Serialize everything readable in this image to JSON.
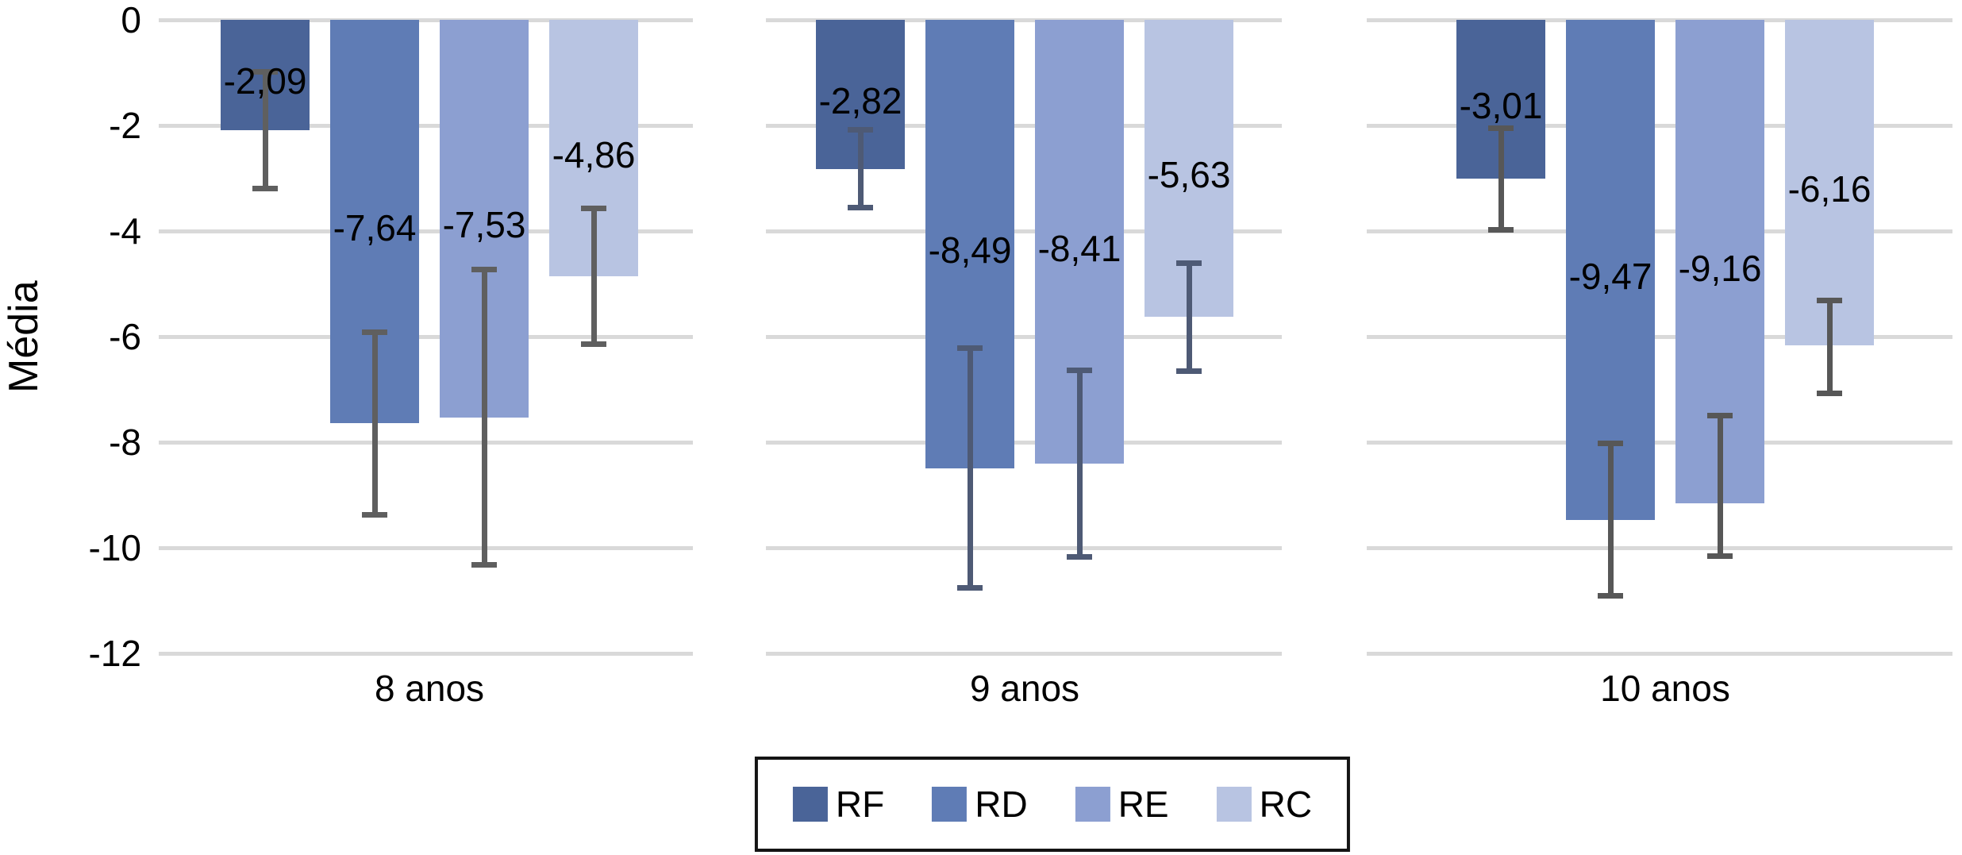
{
  "page": {
    "background": "#ffffff",
    "text_color": "#000000"
  },
  "chart_data": {
    "type": "bar",
    "orientation": "vertical",
    "direction": "negative-down",
    "title": "",
    "xlabel": "",
    "ylabel": "Média",
    "categories": [
      "8 anos",
      "9 anos",
      "10 anos"
    ],
    "y_ticks": [
      "0",
      "-2",
      "-4",
      "-6",
      "-8",
      "-10",
      "-12"
    ],
    "y_tick_values": [
      0,
      -2,
      -4,
      -6,
      -8,
      -10,
      -12
    ],
    "ylim": [
      0,
      -12
    ],
    "grid": true,
    "gridline_color": "#d9d9d9",
    "legend_position": "bottom",
    "decimal_separator": ",",
    "error_bar_colors_per_category": [
      "#5f5f5f",
      "#4e5a75",
      "#575757"
    ],
    "series": [
      {
        "name": "RF",
        "color": "#4a6498",
        "values": [
          -2.09,
          -2.82,
          -3.01
        ],
        "labels": [
          "-2,09",
          "-2,82",
          "-3,01"
        ],
        "error_ranges": [
          [
            -0.99,
            -3.19
          ],
          [
            -2.09,
            -3.55
          ],
          [
            -2.05,
            -3.97
          ]
        ]
      },
      {
        "name": "RD",
        "color": "#5f7cb5",
        "values": [
          -7.64,
          -8.49,
          -9.47
        ],
        "labels": [
          "-7,64",
          "-8,49",
          "-9,47"
        ],
        "error_ranges": [
          [
            -5.91,
            -9.37
          ],
          [
            -6.22,
            -10.76
          ],
          [
            -8.03,
            -10.91
          ]
        ]
      },
      {
        "name": "RE",
        "color": "#8c9fd1",
        "values": [
          -7.53,
          -8.41,
          -9.16
        ],
        "labels": [
          "-7,53",
          "-8,41",
          "-9,16"
        ],
        "error_ranges": [
          [
            -4.73,
            -10.33
          ],
          [
            -6.64,
            -10.18
          ],
          [
            -7.5,
            -10.16
          ]
        ]
      },
      {
        "name": "RC",
        "color": "#b8c4e2",
        "values": [
          -4.86,
          -5.63,
          -6.16
        ],
        "labels": [
          "-4,86",
          "-5,63",
          "-6,16"
        ],
        "error_ranges": [
          [
            -3.57,
            -6.15
          ],
          [
            -4.61,
            -6.65
          ],
          [
            -5.31,
            -7.08
          ]
        ]
      }
    ]
  },
  "legend": {
    "items": [
      "RF",
      "RD",
      "RE",
      "RC"
    ],
    "border_color": "#141414"
  }
}
